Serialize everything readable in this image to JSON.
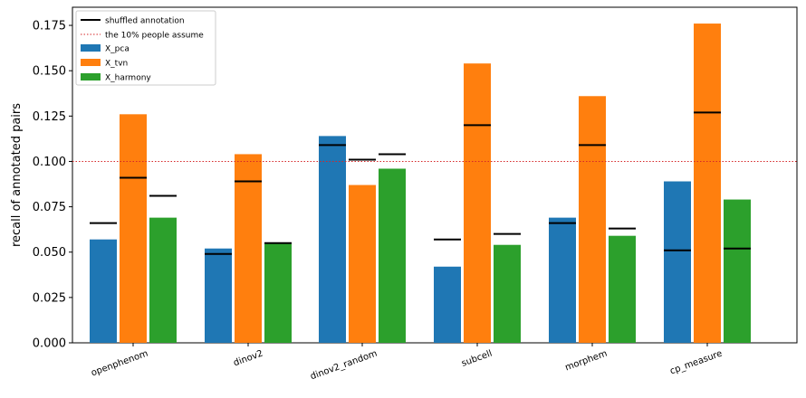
{
  "chart_data": {
    "type": "bar",
    "title": "",
    "xlabel": "",
    "ylabel": "recall of annotated pairs",
    "ylim": [
      0,
      0.185
    ],
    "yticks": [
      "0.000",
      "0.025",
      "0.050",
      "0.075",
      "0.100",
      "0.125",
      "0.150",
      "0.175"
    ],
    "ytick_values": [
      0,
      0.025,
      0.05,
      0.075,
      0.1,
      0.125,
      0.15,
      0.175
    ],
    "categories": [
      "openphenom",
      "dinov2",
      "dinov2_random",
      "subcell",
      "morphem",
      "cp_measure"
    ],
    "series": [
      {
        "name": "X_pca",
        "color": "#1f77b4",
        "values": [
          0.057,
          0.052,
          0.114,
          0.042,
          0.069,
          0.089
        ]
      },
      {
        "name": "X_tvn",
        "color": "#ff7f0e",
        "values": [
          0.126,
          0.104,
          0.087,
          0.154,
          0.136,
          0.176
        ]
      },
      {
        "name": "X_harmony",
        "color": "#2ca02c",
        "values": [
          0.069,
          0.055,
          0.096,
          0.054,
          0.059,
          0.079
        ]
      }
    ],
    "shuffled": {
      "name": "shuffled annotation",
      "color": "#000000",
      "values": [
        [
          0.066,
          0.091,
          0.081
        ],
        [
          0.049,
          0.089,
          0.055
        ],
        [
          0.109,
          0.101,
          0.104
        ],
        [
          0.057,
          0.12,
          0.06
        ],
        [
          0.066,
          0.109,
          0.063
        ],
        [
          0.051,
          0.127,
          0.052
        ]
      ]
    },
    "reference_line": {
      "name": "the 10% people assume",
      "value": 0.1,
      "color": "#d62728"
    },
    "legend_placement": "top-left",
    "grid": false
  }
}
